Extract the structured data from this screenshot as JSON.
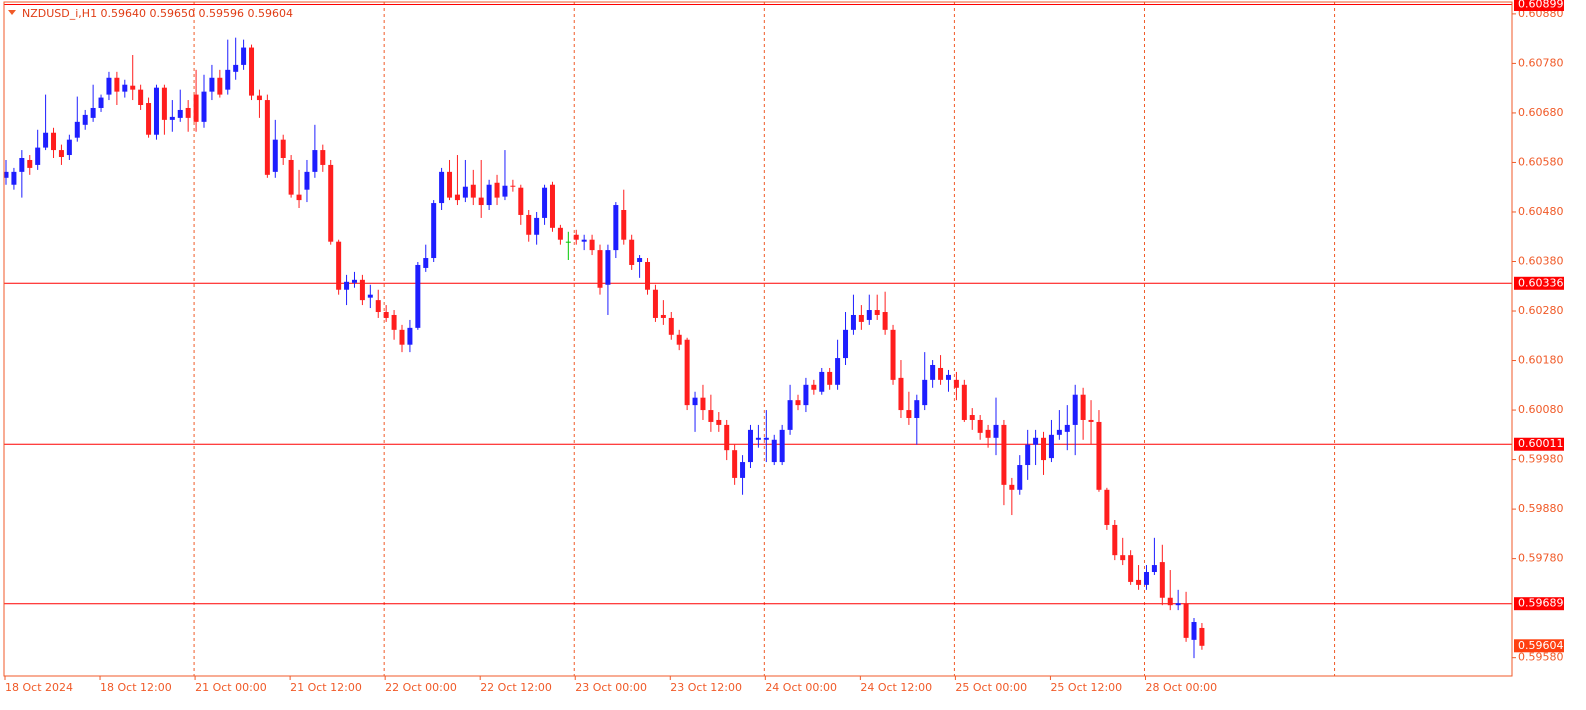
{
  "chart_data": {
    "type": "candlestick",
    "title": "NZDUSD_i,H1  0.59640 0.59650 0.59596 0.59604",
    "categories": [
      "18 Oct 2024",
      null,
      null,
      null,
      null,
      null,
      null,
      null,
      null,
      null,
      null,
      null,
      "18 Oct 12:00",
      null,
      null,
      null,
      null,
      null,
      null,
      null,
      null,
      null,
      null,
      null,
      "21 Oct 00:00",
      null,
      null,
      null,
      null,
      null,
      null,
      null,
      null,
      null,
      null,
      null,
      "21 Oct 12:00",
      null,
      null,
      null,
      null,
      null,
      null,
      null,
      null,
      null,
      null,
      null,
      "22 Oct 00:00",
      null,
      null,
      null,
      null,
      null,
      null,
      null,
      null,
      null,
      null,
      null,
      "22 Oct 12:00",
      null,
      null,
      null,
      null,
      null,
      null,
      null,
      null,
      null,
      null,
      null,
      "23 Oct 00:00",
      null,
      null,
      null,
      null,
      null,
      null,
      null,
      null,
      null,
      null,
      null,
      "23 Oct 12:00",
      null,
      null,
      null,
      null,
      null,
      null,
      null,
      null,
      null,
      null,
      null,
      "24 Oct 00:00",
      null,
      null,
      null,
      null,
      null,
      null,
      null,
      null,
      null,
      null,
      null,
      "24 Oct 12:00",
      null,
      null,
      null,
      null,
      null,
      null,
      null,
      null,
      null,
      null,
      null,
      "25 Oct 00:00",
      null,
      null,
      null,
      null,
      null,
      null,
      null,
      null,
      null,
      null,
      null,
      "25 Oct 12:00",
      null,
      null,
      null,
      null,
      null,
      null,
      null,
      null,
      null,
      null,
      null,
      "28 Oct 00:00",
      null,
      null,
      null,
      null,
      null,
      null,
      null
    ],
    "open": [
      0.60549,
      0.60535,
      0.60561,
      0.60585,
      0.60575,
      0.6061,
      0.6064,
      0.60605,
      0.60595,
      0.6063,
      0.60656,
      0.6067,
      0.6069,
      0.60717,
      0.60751,
      0.60723,
      0.60735,
      0.60727,
      0.607,
      0.60636,
      0.60731,
      0.60666,
      0.6067,
      0.6069,
      0.60717,
      0.60662,
      0.60723,
      0.60751,
      0.60727,
      0.60763,
      0.60777,
      0.60812,
      0.60715,
      0.60706,
      0.60561,
      0.60626,
      0.60585,
      0.60515,
      0.60525,
      0.60561,
      0.60605,
      0.60575,
      0.6042,
      0.60323,
      0.60337,
      0.60343,
      0.60307,
      0.60302,
      0.60278,
      0.60272,
      0.60242,
      0.60212,
      0.60246,
      0.60367,
      0.60387,
      0.60498,
      0.60561,
      0.60515,
      0.60509,
      0.60535,
      0.60509,
      0.60494,
      0.60539,
      0.60511,
      0.60533,
      0.60529,
      0.60474,
      0.60434,
      0.60468,
      0.60535,
      0.60448,
      0.6042,
      0.60434,
      0.6042,
      0.60424,
      0.60403,
      0.60333,
      0.60403,
      0.60484,
      0.60424,
      0.60379,
      0.60379,
      0.60323,
      0.60272,
      0.60266,
      0.60232,
      0.60222,
      0.6009,
      0.60105,
      0.6008,
      0.6006,
      0.6005,
      0.59999,
      0.59943,
      0.59975,
      0.6002,
      0.6002,
      0.59975,
      0.59975,
      0.6004,
      0.601,
      0.6009,
      0.60131,
      0.60117,
      0.60157,
      0.60131,
      0.60185,
      0.60242,
      0.60272,
      0.60262,
      0.60282,
      0.60278,
      0.60242,
      0.60145,
      0.6008,
      0.60064,
      0.6009,
      0.60141,
      0.60165,
      0.60141,
      0.60141,
      0.60131,
      0.6007,
      0.6006,
      0.6004,
      0.60024,
      0.6005,
      0.59929,
      0.59919,
      0.59969,
      0.6001,
      0.60024,
      0.59983,
      0.6003,
      0.60036,
      0.6005,
      0.60111,
      0.6006,
      0.60056,
      0.59919,
      0.59848,
      0.59787,
      0.59787,
      0.59737,
      0.59727,
      0.59753,
      0.59773,
      0.59701,
      0.59686,
      0.5969,
      0.59616,
      0.5964
    ],
    "high": [
      0.60585,
      0.60569,
      0.60605,
      0.60595,
      0.60646,
      0.60717,
      0.6065,
      0.60616,
      0.60636,
      0.60713,
      0.60686,
      0.60737,
      0.60717,
      0.60763,
      0.60763,
      0.60747,
      0.60797,
      0.60737,
      0.60711,
      0.60737,
      0.60737,
      0.60706,
      0.60727,
      0.60706,
      0.60767,
      0.60757,
      0.60777,
      0.60767,
      0.60828,
      0.60832,
      0.60828,
      0.60818,
      0.60727,
      0.60717,
      0.60666,
      0.60636,
      0.60595,
      0.60565,
      0.60585,
      0.60656,
      0.60616,
      0.60585,
      0.60424,
      0.60353,
      0.60359,
      0.60353,
      0.60333,
      0.60323,
      0.60292,
      0.60282,
      0.60252,
      0.60262,
      0.60379,
      0.60414,
      0.60504,
      0.60569,
      0.60585,
      0.60595,
      0.60585,
      0.60565,
      0.60585,
      0.60545,
      0.60555,
      0.60605,
      0.60545,
      0.60535,
      0.60484,
      0.6048,
      0.60535,
      0.60541,
      0.60454,
      0.6044,
      0.60444,
      0.60434,
      0.60434,
      0.60414,
      0.60414,
      0.605,
      0.60525,
      0.60434,
      0.60393,
      0.60387,
      0.60333,
      0.60302,
      0.60278,
      0.60242,
      0.60226,
      0.60117,
      0.60131,
      0.60111,
      0.60076,
      0.6006,
      0.6001,
      0.59989,
      0.6005,
      0.6005,
      0.6008,
      0.6003,
      0.6005,
      0.60131,
      0.60111,
      0.60145,
      0.60141,
      0.60165,
      0.60165,
      0.60222,
      0.60278,
      0.60313,
      0.60292,
      0.60313,
      0.60313,
      0.60319,
      0.60252,
      0.60181,
      0.60117,
      0.60111,
      0.60197,
      0.60181,
      0.60191,
      0.60161,
      0.60157,
      0.60141,
      0.60084,
      0.6007,
      0.6005,
      0.60105,
      0.6006,
      0.59943,
      0.59989,
      0.6004,
      0.6004,
      0.60036,
      0.6006,
      0.6008,
      0.6009,
      0.60131,
      0.60125,
      0.601,
      0.6008,
      0.59923,
      0.59858,
      0.59822,
      0.59797,
      0.59767,
      0.59767,
      0.59822,
      0.59808,
      0.59757,
      0.59717,
      0.59713,
      0.5966,
      0.5965
    ],
    "low": [
      0.60535,
      0.60525,
      0.60509,
      0.60555,
      0.60565,
      0.60605,
      0.60589,
      0.60575,
      0.60585,
      0.60622,
      0.60646,
      0.60662,
      0.60682,
      0.60706,
      0.60696,
      0.60711,
      0.60706,
      0.60686,
      0.6063,
      0.60626,
      0.60636,
      0.60642,
      0.60662,
      0.60642,
      0.60642,
      0.6065,
      0.60706,
      0.60711,
      0.60717,
      0.60747,
      0.60767,
      0.60706,
      0.6067,
      0.60549,
      0.60549,
      0.60575,
      0.60509,
      0.60488,
      0.605,
      0.60549,
      0.60561,
      0.60414,
      0.60313,
      0.60292,
      0.60327,
      0.60292,
      0.60286,
      0.60266,
      0.60258,
      0.60222,
      0.60197,
      0.60197,
      0.60242,
      0.60359,
      0.60379,
      0.60484,
      0.60504,
      0.60494,
      0.605,
      0.60494,
      0.60468,
      0.60484,
      0.60494,
      0.60504,
      0.60521,
      0.60454,
      0.6042,
      0.60414,
      0.60454,
      0.6044,
      0.60414,
      0.60383,
      0.60414,
      0.60403,
      0.60393,
      0.60313,
      0.60272,
      0.60387,
      0.60414,
      0.60363,
      0.60347,
      0.60313,
      0.60258,
      0.60252,
      0.60222,
      0.60201,
      0.6008,
      0.60036,
      0.6006,
      0.60036,
      0.60036,
      0.59979,
      0.59929,
      0.59909,
      0.59963,
      0.60004,
      0.59975,
      0.59969,
      0.59969,
      0.6003,
      0.6008,
      0.60076,
      0.60111,
      0.60111,
      0.60121,
      0.60121,
      0.60171,
      0.60232,
      0.60242,
      0.60252,
      0.60262,
      0.60232,
      0.60131,
      0.60064,
      0.6005,
      0.6001,
      0.6008,
      0.60125,
      0.60131,
      0.60117,
      0.601,
      0.60056,
      0.6004,
      0.6002,
      0.60004,
      0.59989,
      0.59888,
      0.59868,
      0.59909,
      0.59939,
      0.59969,
      0.59949,
      0.59975,
      0.6002,
      0.59999,
      0.59989,
      0.6002,
      0.6001,
      0.59915,
      0.59838,
      0.59777,
      0.59767,
      0.59727,
      0.59717,
      0.59717,
      0.59747,
      0.59686,
      0.59676,
      0.59676,
      0.59612,
      0.59579,
      0.59596
    ],
    "close": [
      0.60561,
      0.60561,
      0.60589,
      0.60569,
      0.6061,
      0.6064,
      0.60605,
      0.60591,
      0.60626,
      0.60662,
      0.60676,
      0.6069,
      0.60711,
      0.60751,
      0.60723,
      0.60737,
      0.60727,
      0.60696,
      0.60636,
      0.60731,
      0.60666,
      0.60672,
      0.60686,
      0.6067,
      0.60662,
      0.60723,
      0.60751,
      0.60717,
      0.60767,
      0.60777,
      0.60812,
      0.60715,
      0.60706,
      0.60555,
      0.60626,
      0.60589,
      0.60515,
      0.60504,
      0.60561,
      0.60605,
      0.60575,
      0.6042,
      0.60323,
      0.60339,
      0.60343,
      0.60302,
      0.60313,
      0.60278,
      0.60266,
      0.60242,
      0.60212,
      0.60246,
      0.60373,
      0.60387,
      0.60498,
      0.60561,
      0.60509,
      0.60504,
      0.60531,
      0.60509,
      0.60494,
      0.60535,
      0.60509,
      0.60533,
      0.60531,
      0.60474,
      0.60434,
      0.60468,
      0.60529,
      0.60448,
      0.60424,
      0.6042,
      0.60424,
      0.60424,
      0.60403,
      0.60327,
      0.60403,
      0.60494,
      0.60424,
      0.60373,
      0.60387,
      0.60323,
      0.60266,
      0.60266,
      0.60232,
      0.60212,
      0.6009,
      0.60105,
      0.6008,
      0.60056,
      0.6005,
      0.59999,
      0.59943,
      0.59975,
      0.6004,
      0.60024,
      0.60024,
      0.6002,
      0.6004,
      0.601,
      0.6009,
      0.60131,
      0.60121,
      0.60157,
      0.60131,
      0.60185,
      0.60242,
      0.60272,
      0.60258,
      0.60282,
      0.60272,
      0.60242,
      0.60141,
      0.6008,
      0.60064,
      0.601,
      0.60141,
      0.60171,
      0.60141,
      0.60151,
      0.60125,
      0.6006,
      0.6006,
      0.60034,
      0.60024,
      0.6005,
      0.59929,
      0.59919,
      0.59969,
      0.6001,
      0.60024,
      0.59979,
      0.6003,
      0.6004,
      0.6005,
      0.60111,
      0.6006,
      0.60056,
      0.59919,
      0.59848,
      0.59787,
      0.59777,
      0.59733,
      0.59727,
      0.59753,
      0.59767,
      0.59701,
      0.59686,
      0.5969,
      0.5962,
      0.59652,
      0.59604
    ],
    "ylim": [
      0.59543,
      0.60904
    ],
    "yticks": [
      {
        "value": 0.6088,
        "label": "0.60880"
      },
      {
        "value": 0.6078,
        "label": "0.60780"
      },
      {
        "value": 0.6068,
        "label": "0.60680"
      },
      {
        "value": 0.6058,
        "label": "0.60580"
      },
      {
        "value": 0.6048,
        "label": "0.60480"
      },
      {
        "value": 0.6038,
        "label": "0.60380"
      },
      {
        "value": 0.6028,
        "label": "0.60280"
      },
      {
        "value": 0.6018,
        "label": "0.60180"
      },
      {
        "value": 0.6008,
        "label": "0.60080"
      },
      {
        "value": 0.5998,
        "label": "0.59980"
      },
      {
        "value": 0.5988,
        "label": "0.59880"
      },
      {
        "value": 0.5978,
        "label": "0.59780"
      },
      {
        "value": 0.5958,
        "label": "0.59580"
      }
    ],
    "levels": [
      0.60899,
      0.60336,
      0.60011,
      0.59689
    ],
    "last_price": 0.59604,
    "colors": {
      "bull": "#1e1eff",
      "bear": "#ff1e1e",
      "doji": "#00c800",
      "level": "#ff0000",
      "last_price": "#ff4010",
      "axis": "#f05a28"
    }
  }
}
